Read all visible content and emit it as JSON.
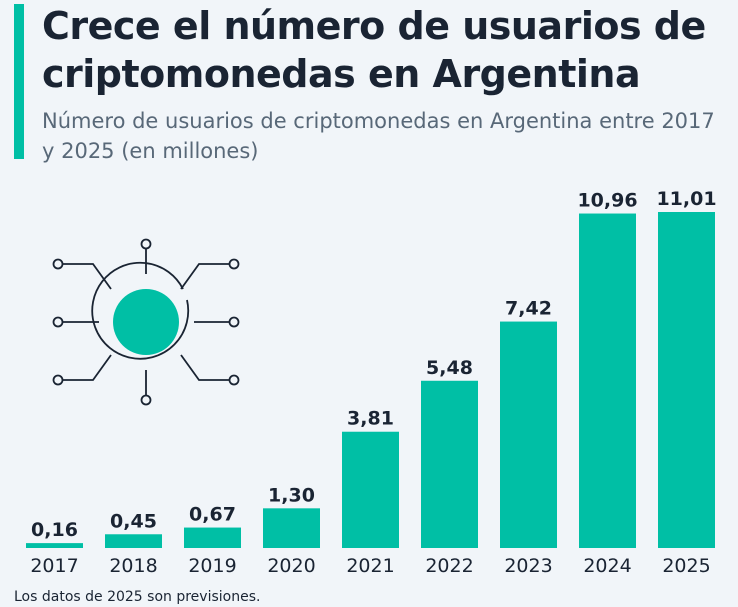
{
  "header": {
    "title": "Crece el número de usuarios de criptomonedas en Argentina",
    "subtitle": "Número de usuarios de criptomonedas en Argentina entre 2017 y 2025 (en millones)"
  },
  "footnote": "Los datos de 2025 son previsiones.",
  "colors": {
    "bar": "#00bfa5",
    "text": "#1a2433",
    "subtitle": "#586878",
    "background": "#f1f5f9"
  },
  "icon": "crypto-network-icon",
  "chart_data": {
    "type": "bar",
    "title": "Crece el número de usuarios de criptomonedas en Argentina",
    "xlabel": "",
    "ylabel": "",
    "categories": [
      "2017",
      "2018",
      "2019",
      "2020",
      "2021",
      "2022",
      "2023",
      "2024",
      "2025"
    ],
    "values": [
      0.16,
      0.45,
      0.67,
      1.3,
      3.81,
      5.48,
      7.42,
      10.96,
      11.01
    ],
    "value_labels": [
      "0,16",
      "0,45",
      "0,67",
      "1,30",
      "3,81",
      "5,48",
      "7,42",
      "10,96",
      "11,01"
    ],
    "ylim": [
      0,
      11.01
    ],
    "grid": false
  }
}
